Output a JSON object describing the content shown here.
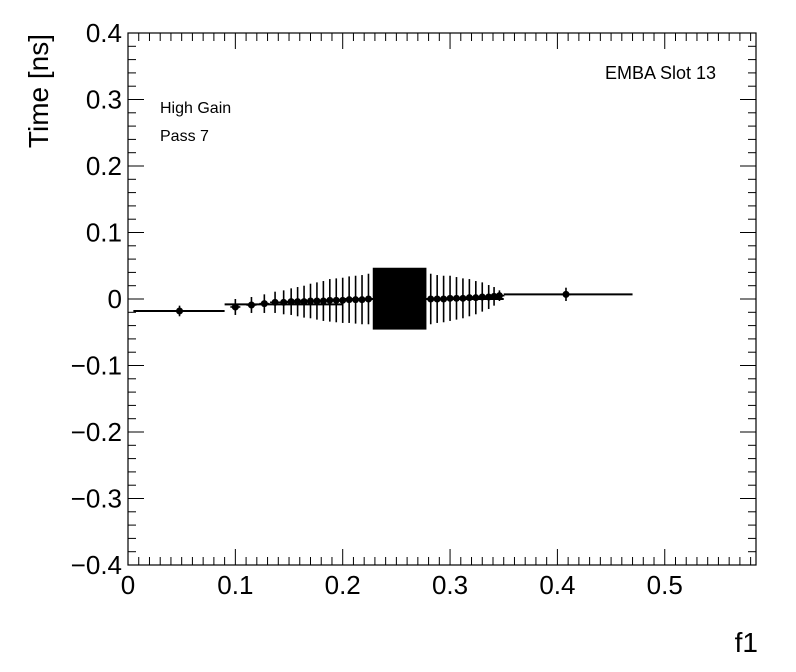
{
  "chart_data": {
    "type": "scatter",
    "title": "",
    "xlabel": "f1",
    "ylabel": "Time [ns]",
    "xlim": [
      0,
      0.585
    ],
    "ylim": [
      -0.4,
      0.4
    ],
    "x_ticks": [
      "0",
      "0.1",
      "0.2",
      "0.3",
      "0.4",
      "0.5"
    ],
    "y_ticks": [
      "−0.4",
      "−0.3",
      "−0.2",
      "−0.1",
      "0",
      "0.1",
      "0.2",
      "0.3",
      "0.4"
    ],
    "annotations": {
      "corner_label": "EMBA Slot 13",
      "gain_label": "High Gain",
      "pass_label": "Pass 7"
    },
    "fit_line": {
      "x_start": 0.005,
      "x_end": 0.47,
      "segments": [
        {
          "x": [
            0.005,
            0.09
          ],
          "y": -0.018
        },
        {
          "x": [
            0.09,
            0.2
          ],
          "y": -0.008
        },
        {
          "x": [
            0.2,
            0.35
          ],
          "y": 0.0
        },
        {
          "x": [
            0.35,
            0.47
          ],
          "y": 0.007
        }
      ]
    },
    "points": [
      {
        "x": 0.048,
        "y": -0.018,
        "err": 0.008
      },
      {
        "x": 0.1,
        "y": -0.012,
        "err": 0.012
      },
      {
        "x": 0.115,
        "y": -0.009,
        "err": 0.012
      },
      {
        "x": 0.127,
        "y": -0.007,
        "err": 0.014
      },
      {
        "x": 0.137,
        "y": -0.005,
        "err": 0.016
      },
      {
        "x": 0.145,
        "y": -0.005,
        "err": 0.018
      },
      {
        "x": 0.152,
        "y": -0.004,
        "err": 0.02
      },
      {
        "x": 0.158,
        "y": -0.004,
        "err": 0.022
      },
      {
        "x": 0.164,
        "y": -0.004,
        "err": 0.024
      },
      {
        "x": 0.17,
        "y": -0.003,
        "err": 0.026
      },
      {
        "x": 0.176,
        "y": -0.003,
        "err": 0.028
      },
      {
        "x": 0.182,
        "y": -0.003,
        "err": 0.03
      },
      {
        "x": 0.188,
        "y": -0.002,
        "err": 0.032
      },
      {
        "x": 0.194,
        "y": -0.002,
        "err": 0.033
      },
      {
        "x": 0.2,
        "y": -0.002,
        "err": 0.034
      },
      {
        "x": 0.206,
        "y": -0.001,
        "err": 0.035
      },
      {
        "x": 0.212,
        "y": -0.001,
        "err": 0.036
      },
      {
        "x": 0.218,
        "y": -0.001,
        "err": 0.037
      },
      {
        "x": 0.224,
        "y": 0.0,
        "err": 0.038
      },
      {
        "x": 0.282,
        "y": 0.0,
        "err": 0.038
      },
      {
        "x": 0.288,
        "y": 0.0,
        "err": 0.036
      },
      {
        "x": 0.294,
        "y": 0.0,
        "err": 0.035
      },
      {
        "x": 0.3,
        "y": 0.001,
        "err": 0.034
      },
      {
        "x": 0.306,
        "y": 0.001,
        "err": 0.032
      },
      {
        "x": 0.312,
        "y": 0.001,
        "err": 0.03
      },
      {
        "x": 0.318,
        "y": 0.002,
        "err": 0.028
      },
      {
        "x": 0.324,
        "y": 0.002,
        "err": 0.025
      },
      {
        "x": 0.33,
        "y": 0.003,
        "err": 0.022
      },
      {
        "x": 0.336,
        "y": 0.003,
        "err": 0.018
      },
      {
        "x": 0.341,
        "y": 0.004,
        "err": 0.014
      },
      {
        "x": 0.346,
        "y": 0.005,
        "err": 0.008
      },
      {
        "x": 0.408,
        "y": 0.007,
        "err": 0.01
      }
    ],
    "dense_band": {
      "x": [
        0.228,
        0.278
      ],
      "y": [
        -0.046,
        0.047
      ]
    }
  }
}
